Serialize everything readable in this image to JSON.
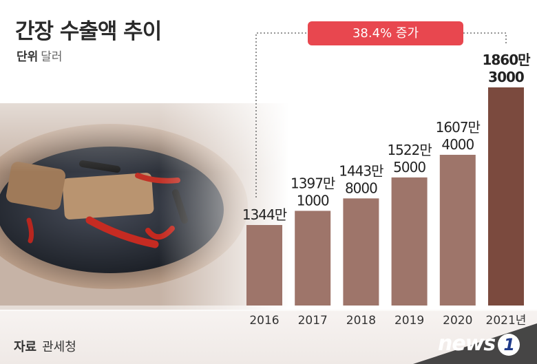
{
  "title": "간장 수출액 추이",
  "unit_label": "단위",
  "unit_value": "달러",
  "source_label": "자료",
  "source_value": "관세청",
  "logo_text": "news",
  "logo_mark": "1",
  "growth_badge": "38.4% 증가",
  "colors": {
    "bar": "#9e756a",
    "bar_highlight": "#7b4a3e",
    "badge": "#e8474f",
    "title": "#2a2a2a"
  },
  "chart_data": {
    "type": "bar",
    "categories": [
      "2016",
      "2017",
      "2018",
      "2019",
      "2020",
      "2021년"
    ],
    "values": [
      13440000,
      13971000,
      14438000,
      15225000,
      16074000,
      18603000
    ],
    "value_labels": [
      [
        "1344만"
      ],
      [
        "1397만",
        "1000"
      ],
      [
        "1443만",
        "8000"
      ],
      [
        "1522만",
        "5000"
      ],
      [
        "1607만",
        "4000"
      ],
      [
        "1860만",
        "3000"
      ]
    ],
    "annotation": "38.4% 증가",
    "xlabel": "",
    "ylabel": "",
    "grid": false,
    "legend": "none"
  }
}
